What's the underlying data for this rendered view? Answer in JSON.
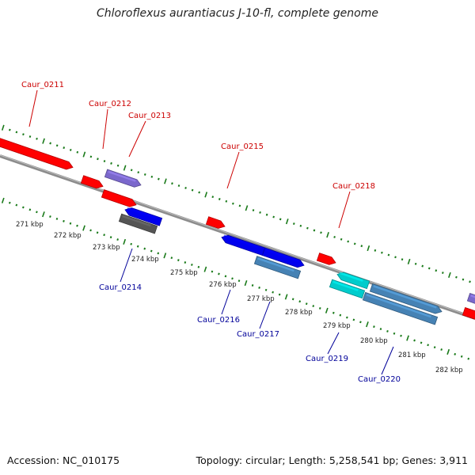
{
  "title": "Chloroflexus aurantiacus J-10-fl, complete genome",
  "footer": {
    "accession": "Accession: NC_010175",
    "summary": "Topology: circular; Length: 5,258,541 bp; Genes: 3,911"
  },
  "scale_labels": [
    "271 kbp",
    "272 kbp",
    "273 kbp",
    "274 kbp",
    "275 kbp",
    "276 kbp",
    "277 kbp",
    "278 kbp",
    "279 kbp",
    "280 kbp",
    "281 kbp",
    "282 kbp"
  ],
  "colors": {
    "forward_label": "#cc0000",
    "reverse_label": "#000099",
    "tick": "#1a7a1a",
    "backbone": "#8c8c8c"
  },
  "genes": [
    {
      "name": "Caur_0211",
      "strand": "forward",
      "color": "#ff0000"
    },
    {
      "name": "Caur_0212",
      "strand": "forward",
      "color": "#ff0000"
    },
    {
      "name": "Caur_0213",
      "strand": "forward",
      "color": "#7b68cc"
    },
    {
      "name": "Caur_0215",
      "strand": "forward",
      "color": "#ff0000"
    },
    {
      "name": "Caur_0218",
      "strand": "forward",
      "color": "#ff0000"
    },
    {
      "name": "Caur_0214",
      "strand": "reverse",
      "color": "#0000ee"
    },
    {
      "name": "Caur_0216",
      "strand": "reverse",
      "color": "#0000ee"
    },
    {
      "name": "Caur_0217",
      "strand": "reverse",
      "color": "#4682b4"
    },
    {
      "name": "Caur_0219",
      "strand": "reverse",
      "color": "#00cccc"
    },
    {
      "name": "Caur_0220",
      "strand": "reverse",
      "color": "#4682b4"
    }
  ]
}
